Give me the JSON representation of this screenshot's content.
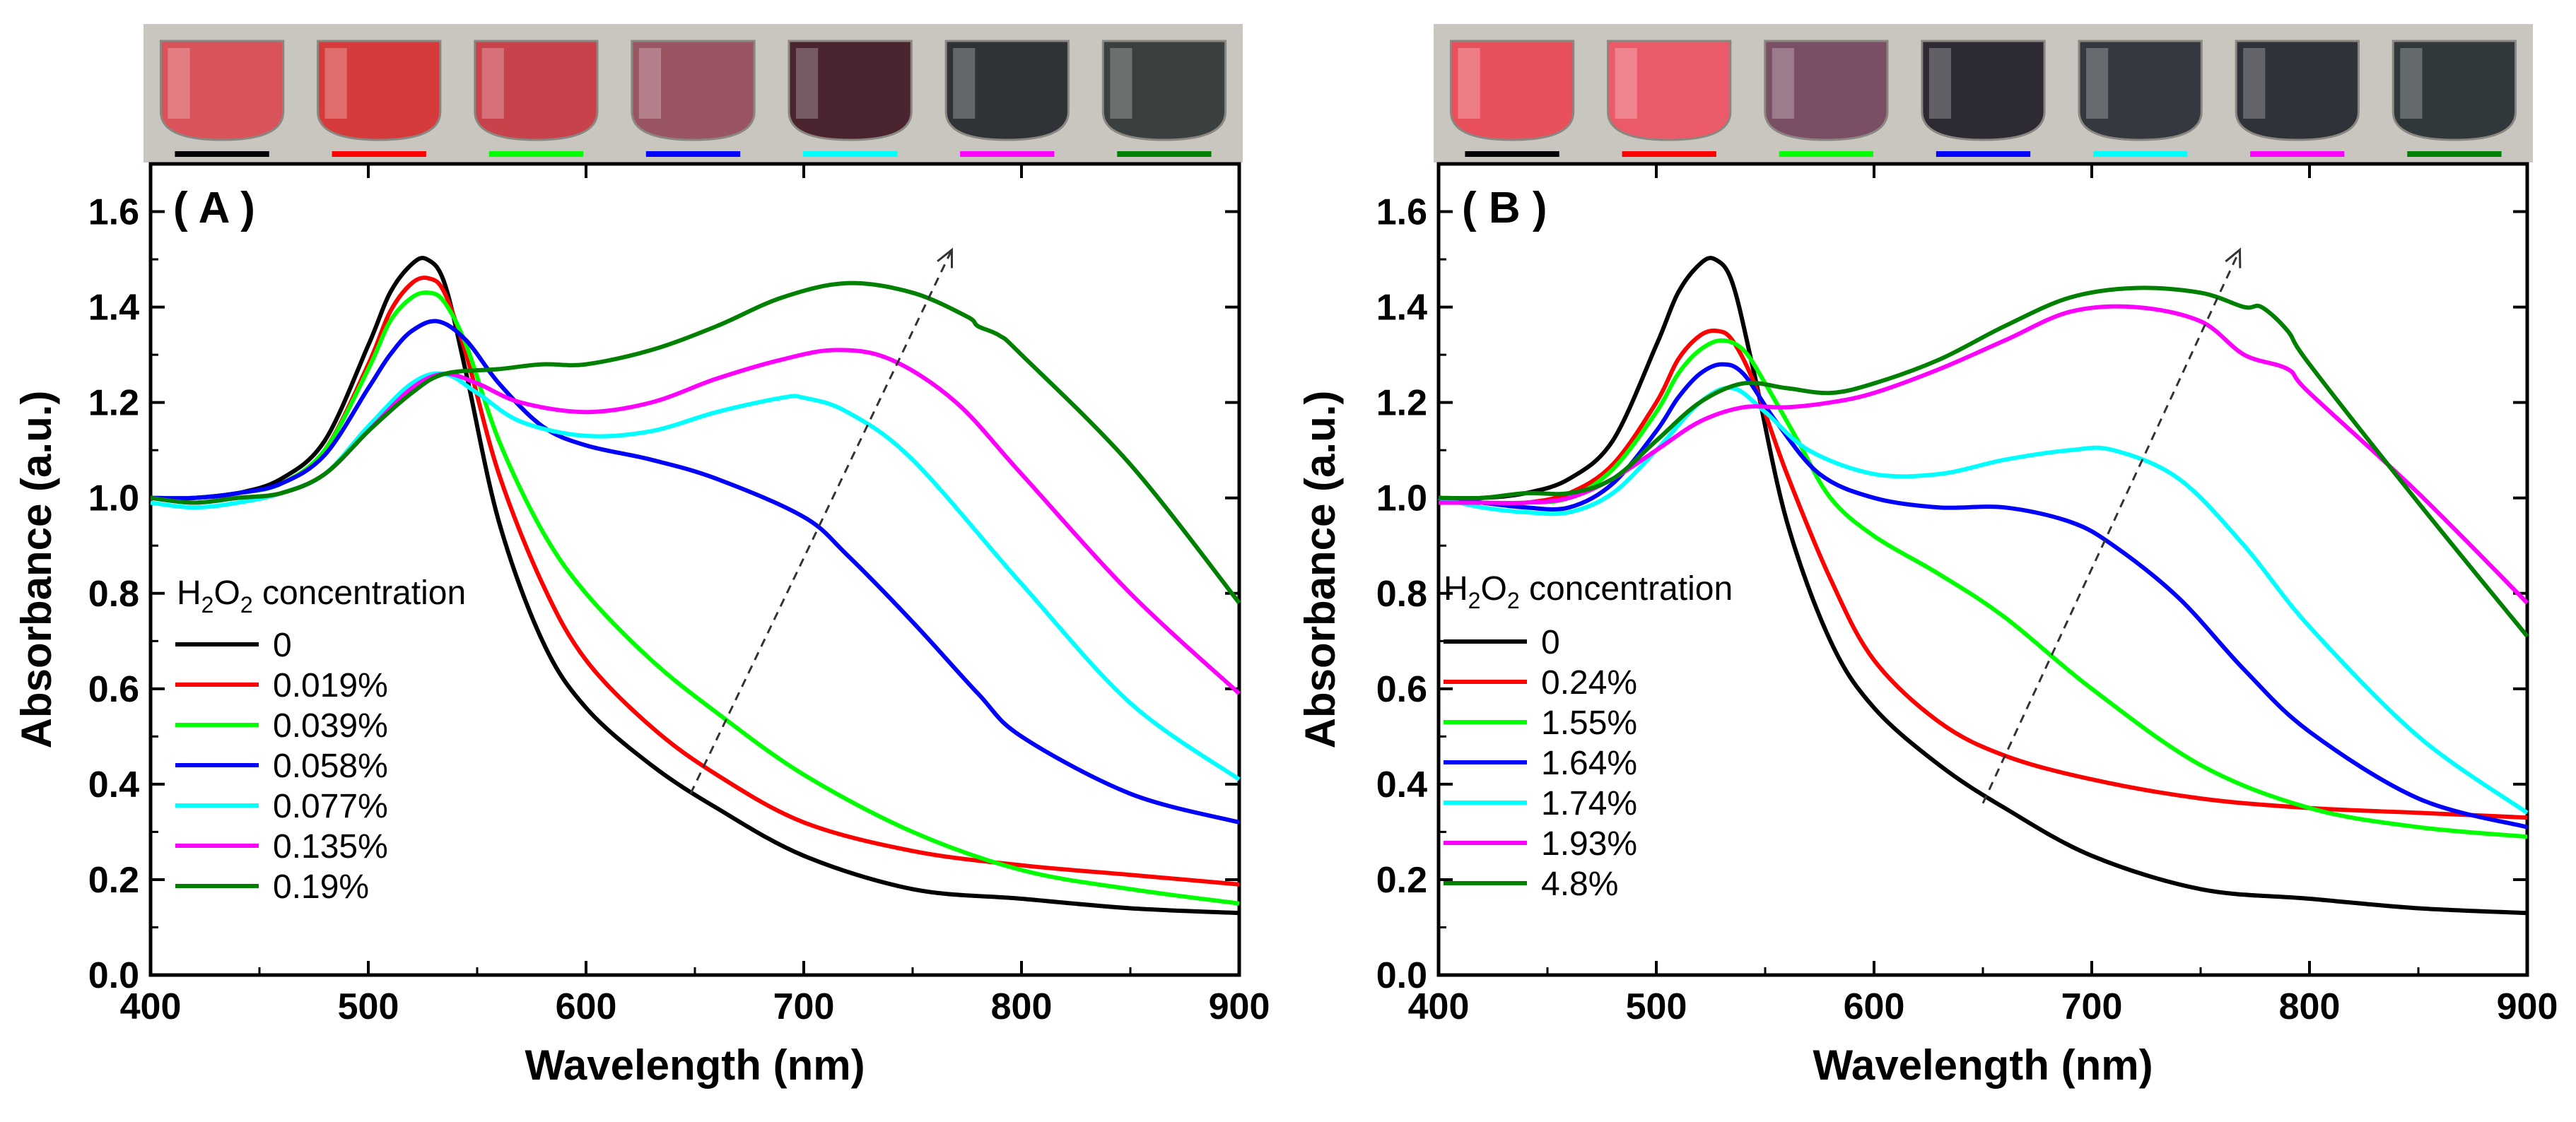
{
  "chart_data": [
    {
      "type": "line",
      "panel_label": "( A )",
      "xlabel": "Wavelength (nm)",
      "ylabel": "Absorbance (a.u.)",
      "xlim": [
        400,
        900
      ],
      "ylim": [
        0.0,
        1.7
      ],
      "x_ticks": [
        "400",
        "500",
        "600",
        "700",
        "800",
        "900"
      ],
      "y_ticks": [
        "0.0",
        "0.2",
        "0.4",
        "0.6",
        "0.8",
        "1.0",
        "1.2",
        "1.4",
        "1.6"
      ],
      "legend_title": "H2O2 concentration",
      "legend_placement": "lower-left",
      "vial_colors": [
        "#d9535a",
        "#d63b3b",
        "#c8424c",
        "#9a5563",
        "#4a2530",
        "#2f3338",
        "#3a4040"
      ],
      "arrow": {
        "from": [
          648,
          0.38
        ],
        "to": [
          768,
          1.52
        ]
      },
      "series": [
        {
          "name": "0",
          "color": "#000000",
          "x": [
            400,
            420,
            440,
            460,
            480,
            500,
            510,
            520,
            527,
            535,
            545,
            560,
            580,
            600,
            630,
            660,
            700,
            750,
            800,
            850,
            900
          ],
          "y": [
            1.0,
            1.0,
            1.01,
            1.04,
            1.12,
            1.32,
            1.43,
            1.49,
            1.5,
            1.45,
            1.26,
            0.95,
            0.7,
            0.56,
            0.44,
            0.35,
            0.25,
            0.18,
            0.16,
            0.14,
            0.13
          ]
        },
        {
          "name": "0.019%",
          "color": "#ff0000",
          "x": [
            400,
            420,
            440,
            460,
            480,
            500,
            510,
            520,
            528,
            535,
            545,
            560,
            580,
            600,
            630,
            660,
            700,
            750,
            800,
            850,
            900
          ],
          "y": [
            1.0,
            1.0,
            1.01,
            1.03,
            1.1,
            1.28,
            1.39,
            1.45,
            1.46,
            1.43,
            1.3,
            1.05,
            0.82,
            0.66,
            0.52,
            0.42,
            0.32,
            0.26,
            0.23,
            0.21,
            0.19
          ]
        },
        {
          "name": "0.039%",
          "color": "#00ff00",
          "x": [
            400,
            420,
            440,
            460,
            480,
            500,
            510,
            520,
            528,
            535,
            545,
            560,
            580,
            600,
            630,
            660,
            700,
            750,
            800,
            850,
            900
          ],
          "y": [
            1.0,
            1.0,
            1.01,
            1.03,
            1.1,
            1.27,
            1.37,
            1.42,
            1.43,
            1.41,
            1.32,
            1.12,
            0.93,
            0.8,
            0.66,
            0.55,
            0.42,
            0.3,
            0.22,
            0.18,
            0.15
          ]
        },
        {
          "name": "0.058%",
          "color": "#0000ff",
          "x": [
            400,
            420,
            440,
            460,
            480,
            500,
            510,
            520,
            532,
            545,
            560,
            580,
            600,
            630,
            660,
            700,
            720,
            750,
            780,
            800,
            850,
            900
          ],
          "y": [
            1.0,
            1.0,
            1.01,
            1.03,
            1.09,
            1.23,
            1.3,
            1.35,
            1.37,
            1.33,
            1.24,
            1.15,
            1.11,
            1.08,
            1.04,
            0.96,
            0.88,
            0.74,
            0.59,
            0.5,
            0.38,
            0.32
          ]
        },
        {
          "name": "0.077%",
          "color": "#00ffff",
          "x": [
            400,
            420,
            440,
            460,
            480,
            500,
            520,
            535,
            550,
            570,
            600,
            630,
            660,
            690,
            700,
            720,
            750,
            800,
            850,
            900
          ],
          "y": [
            0.99,
            0.98,
            0.99,
            1.01,
            1.05,
            1.15,
            1.24,
            1.26,
            1.22,
            1.16,
            1.13,
            1.14,
            1.18,
            1.21,
            1.21,
            1.18,
            1.08,
            0.82,
            0.57,
            0.41
          ]
        },
        {
          "name": "0.135%",
          "color": "#ff00ff",
          "x": [
            400,
            420,
            440,
            460,
            480,
            500,
            520,
            535,
            550,
            570,
            600,
            630,
            660,
            690,
            715,
            740,
            770,
            800,
            850,
            900
          ],
          "y": [
            1.0,
            0.99,
            1.0,
            1.01,
            1.05,
            1.14,
            1.23,
            1.26,
            1.24,
            1.2,
            1.18,
            1.2,
            1.25,
            1.29,
            1.31,
            1.29,
            1.2,
            1.05,
            0.8,
            0.59
          ]
        },
        {
          "name": "0.19%",
          "color": "#008000",
          "x": [
            400,
            420,
            440,
            460,
            480,
            500,
            520,
            535,
            560,
            580,
            600,
            630,
            660,
            690,
            720,
            750,
            775,
            780,
            790,
            800,
            850,
            900
          ],
          "y": [
            1.0,
            0.99,
            1.0,
            1.01,
            1.05,
            1.14,
            1.22,
            1.26,
            1.27,
            1.28,
            1.28,
            1.31,
            1.36,
            1.42,
            1.45,
            1.43,
            1.38,
            1.36,
            1.34,
            1.3,
            1.07,
            0.78
          ]
        }
      ]
    },
    {
      "type": "line",
      "panel_label": "( B )",
      "xlabel": "Wavelength (nm)",
      "ylabel": "Absorbance (a.u.)",
      "xlim": [
        400,
        900
      ],
      "ylim": [
        0.0,
        1.7
      ],
      "x_ticks": [
        "400",
        "500",
        "600",
        "700",
        "800",
        "900"
      ],
      "y_ticks": [
        "0.0",
        "0.2",
        "0.4",
        "0.6",
        "0.8",
        "1.0",
        "1.2",
        "1.4",
        "1.6"
      ],
      "legend_title": "H2O2 concentration",
      "legend_placement": "lower-left",
      "vial_colors": [
        "#e8505c",
        "#ea5a68",
        "#7a4f66",
        "#2e2a33",
        "#35393f",
        "#2f3238",
        "#30383c"
      ],
      "arrow": {
        "from": [
          650,
          0.36
        ],
        "to": [
          768,
          1.52
        ]
      },
      "series": [
        {
          "name": "0",
          "color": "#000000",
          "x": [
            400,
            420,
            440,
            460,
            480,
            500,
            510,
            520,
            527,
            535,
            545,
            560,
            580,
            600,
            630,
            660,
            700,
            750,
            800,
            850,
            900
          ],
          "y": [
            1.0,
            1.0,
            1.01,
            1.04,
            1.12,
            1.32,
            1.43,
            1.49,
            1.5,
            1.45,
            1.26,
            0.95,
            0.7,
            0.56,
            0.44,
            0.35,
            0.25,
            0.18,
            0.16,
            0.14,
            0.13
          ]
        },
        {
          "name": "0.24%",
          "color": "#ff0000",
          "x": [
            400,
            420,
            440,
            460,
            480,
            500,
            510,
            520,
            528,
            535,
            545,
            560,
            580,
            600,
            630,
            660,
            700,
            750,
            800,
            850,
            900
          ],
          "y": [
            1.0,
            0.99,
            0.99,
            1.01,
            1.07,
            1.2,
            1.29,
            1.34,
            1.35,
            1.33,
            1.24,
            1.05,
            0.83,
            0.66,
            0.53,
            0.46,
            0.41,
            0.37,
            0.35,
            0.34,
            0.33
          ]
        },
        {
          "name": "1.55%",
          "color": "#00ff00",
          "x": [
            400,
            420,
            440,
            460,
            480,
            500,
            510,
            520,
            530,
            540,
            550,
            565,
            580,
            600,
            630,
            660,
            700,
            750,
            800,
            850,
            900
          ],
          "y": [
            1.0,
            0.99,
            0.99,
            1.0,
            1.06,
            1.18,
            1.26,
            1.31,
            1.33,
            1.31,
            1.24,
            1.12,
            1.0,
            0.92,
            0.84,
            0.75,
            0.6,
            0.44,
            0.35,
            0.31,
            0.29
          ]
        },
        {
          "name": "1.64%",
          "color": "#0000ff",
          "x": [
            400,
            420,
            440,
            460,
            480,
            500,
            510,
            520,
            530,
            540,
            555,
            575,
            600,
            630,
            660,
            690,
            710,
            740,
            770,
            800,
            850,
            900
          ],
          "y": [
            1.0,
            0.99,
            0.98,
            0.98,
            1.03,
            1.14,
            1.21,
            1.26,
            1.28,
            1.26,
            1.16,
            1.05,
            1.0,
            0.98,
            0.98,
            0.95,
            0.9,
            0.79,
            0.64,
            0.51,
            0.37,
            0.31
          ]
        },
        {
          "name": "1.74%",
          "color": "#00ffff",
          "x": [
            400,
            420,
            440,
            460,
            480,
            500,
            520,
            535,
            550,
            570,
            600,
            630,
            660,
            690,
            710,
            740,
            770,
            800,
            850,
            900
          ],
          "y": [
            1.0,
            0.98,
            0.97,
            0.97,
            1.01,
            1.1,
            1.2,
            1.23,
            1.18,
            1.1,
            1.05,
            1.05,
            1.08,
            1.1,
            1.1,
            1.04,
            0.9,
            0.73,
            0.5,
            0.34
          ]
        },
        {
          "name": "1.93%",
          "color": "#ff00ff",
          "x": [
            400,
            420,
            440,
            460,
            480,
            500,
            520,
            540,
            560,
            580,
            600,
            630,
            660,
            690,
            720,
            750,
            770,
            790,
            800,
            850,
            900
          ],
          "y": [
            0.99,
            0.99,
            0.99,
            1.0,
            1.04,
            1.1,
            1.16,
            1.19,
            1.19,
            1.2,
            1.22,
            1.27,
            1.33,
            1.39,
            1.4,
            1.37,
            1.3,
            1.27,
            1.22,
            1.01,
            0.78
          ]
        },
        {
          "name": "4.8%",
          "color": "#008000",
          "x": [
            400,
            420,
            440,
            460,
            480,
            500,
            520,
            540,
            560,
            580,
            600,
            630,
            660,
            690,
            720,
            750,
            770,
            778,
            790,
            800,
            850,
            900
          ],
          "y": [
            1.0,
            1.0,
            1.01,
            1.01,
            1.04,
            1.12,
            1.2,
            1.24,
            1.23,
            1.22,
            1.24,
            1.29,
            1.36,
            1.42,
            1.44,
            1.43,
            1.4,
            1.4,
            1.35,
            1.28,
            0.99,
            0.71
          ]
        }
      ]
    }
  ]
}
